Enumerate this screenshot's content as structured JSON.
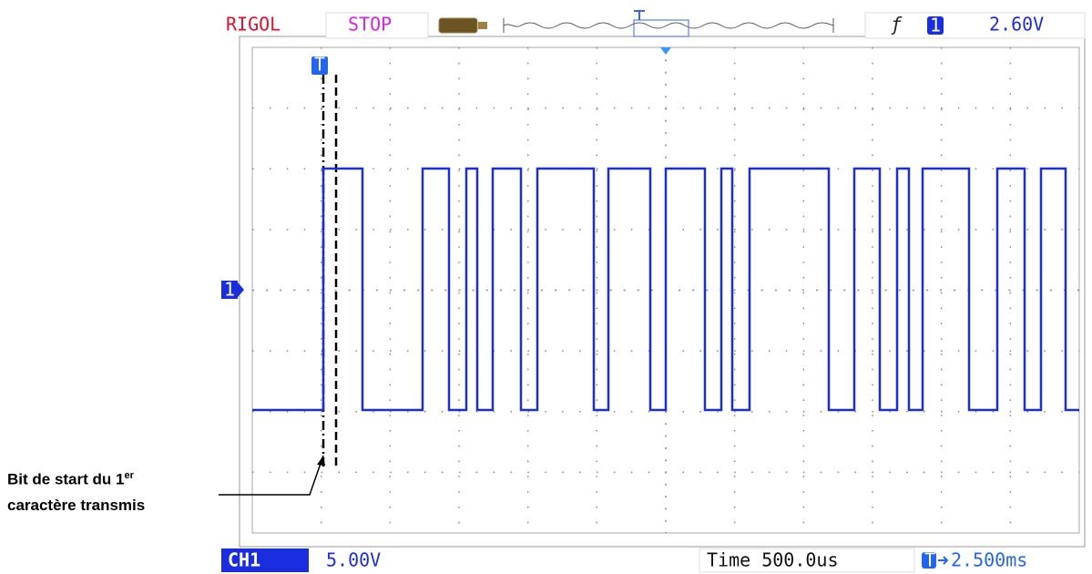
{
  "header": {
    "brand": "RIGOL",
    "status": "STOP",
    "trigger_channel": "1",
    "trigger_level": "2.60V"
  },
  "footer": {
    "channel": "CH1",
    "volts_per_div": "5.00V",
    "timebase": "Time 500.0us",
    "trigger_offset": "2.500ms"
  },
  "markers": {
    "trigger": "T",
    "channel": "1"
  },
  "annotation": {
    "text": "Bit de start du 1",
    "superscript": "er",
    "line2": "caractère transmis"
  }
}
